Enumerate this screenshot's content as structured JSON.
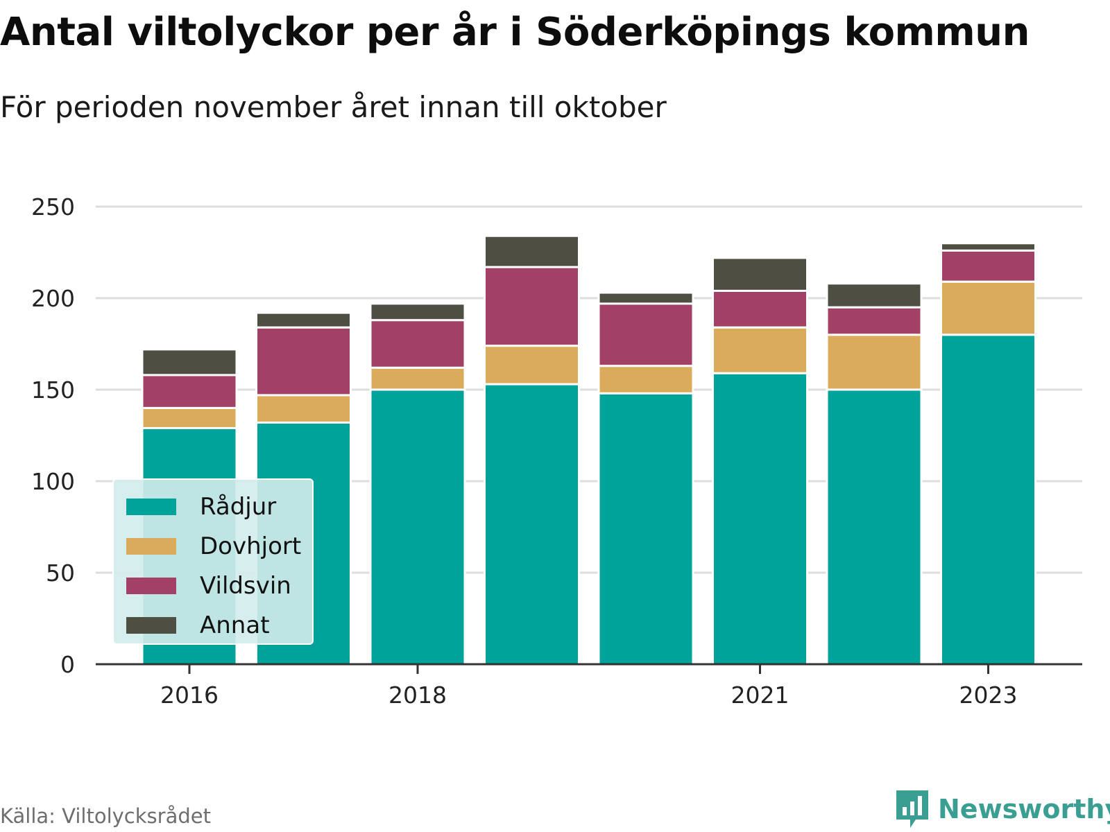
{
  "title": "Antal viltolyckor per år i Söderköpings kommun",
  "subtitle": "För perioden november året innan till oktober",
  "source": "Källa: Viltolycksrådet",
  "logo": {
    "text": "Newsworthy",
    "icon": "bar-chart-speech-bubble-icon",
    "color": "#3a9e93"
  },
  "chart_data": {
    "type": "bar",
    "stacked": true,
    "categories": [
      "2016",
      "2017",
      "2018",
      "2019",
      "2020",
      "2021",
      "2022",
      "2023"
    ],
    "x_tick_labels": [
      "2016",
      "2018",
      "2021",
      "2023"
    ],
    "series": [
      {
        "name": "Rådjur",
        "color": "#00a39a",
        "values": [
          129,
          132,
          150,
          153,
          148,
          159,
          150,
          180
        ]
      },
      {
        "name": "Dovhjort",
        "color": "#dbab5c",
        "values": [
          11,
          15,
          12,
          21,
          15,
          25,
          30,
          29
        ]
      },
      {
        "name": "Vildsvin",
        "color": "#a34066",
        "values": [
          18,
          37,
          26,
          43,
          34,
          20,
          15,
          17
        ]
      },
      {
        "name": "Annat",
        "color": "#4e4e42",
        "values": [
          14,
          8,
          9,
          17,
          6,
          18,
          13,
          4
        ]
      }
    ],
    "ylim": [
      0,
      250
    ],
    "yticks": [
      0,
      50,
      100,
      150,
      200,
      250
    ],
    "grid": true,
    "legend_position": "bottom-left"
  }
}
